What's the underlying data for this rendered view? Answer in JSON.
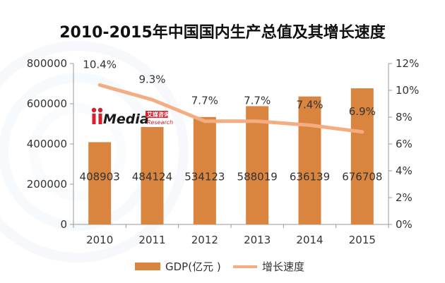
{
  "watermark": {
    "brand": "iiMedia",
    "brand_cn": "艾媒咨询",
    "brand_en": "Research",
    "red": "#d81f2a"
  },
  "colors": {
    "bar": "#d9843f",
    "line": "#f4ad82",
    "axis": "#999999",
    "background_ring": "#eef3f8"
  },
  "chart_data": {
    "type": "bar",
    "title": "2010-2015年中国国内生产总值及其增长速度",
    "categories": [
      "2010",
      "2011",
      "2012",
      "2013",
      "2014",
      "2015"
    ],
    "series": [
      {
        "name": "GDP(亿元 )",
        "type": "bar",
        "axis": "left",
        "values": [
          408903,
          484124,
          534123,
          588019,
          636139,
          676708
        ],
        "labels": [
          "408903",
          "484124",
          "534123",
          "588019",
          "636139",
          "676708"
        ]
      },
      {
        "name": "增长速度",
        "type": "line",
        "axis": "right",
        "values": [
          10.4,
          9.3,
          7.7,
          7.7,
          7.4,
          6.9
        ],
        "labels": [
          "10.4%",
          "9.3%",
          "7.7%",
          "7.7%",
          "7.4%",
          "6.9%"
        ]
      }
    ],
    "y_left": {
      "ylim": [
        0,
        800000
      ],
      "ticks": [
        0,
        200000,
        400000,
        600000,
        800000
      ],
      "tick_labels": [
        "0",
        "200000",
        "400000",
        "600000",
        "800000"
      ]
    },
    "y_right": {
      "ylim": [
        0,
        12
      ],
      "ticks": [
        0,
        2,
        4,
        6,
        8,
        10,
        12
      ],
      "tick_labels": [
        "0%",
        "2%",
        "4%",
        "6%",
        "8%",
        "10%",
        "12%"
      ]
    },
    "xlabel": "",
    "ylabel": "",
    "legend_position": "bottom",
    "grid": false
  }
}
